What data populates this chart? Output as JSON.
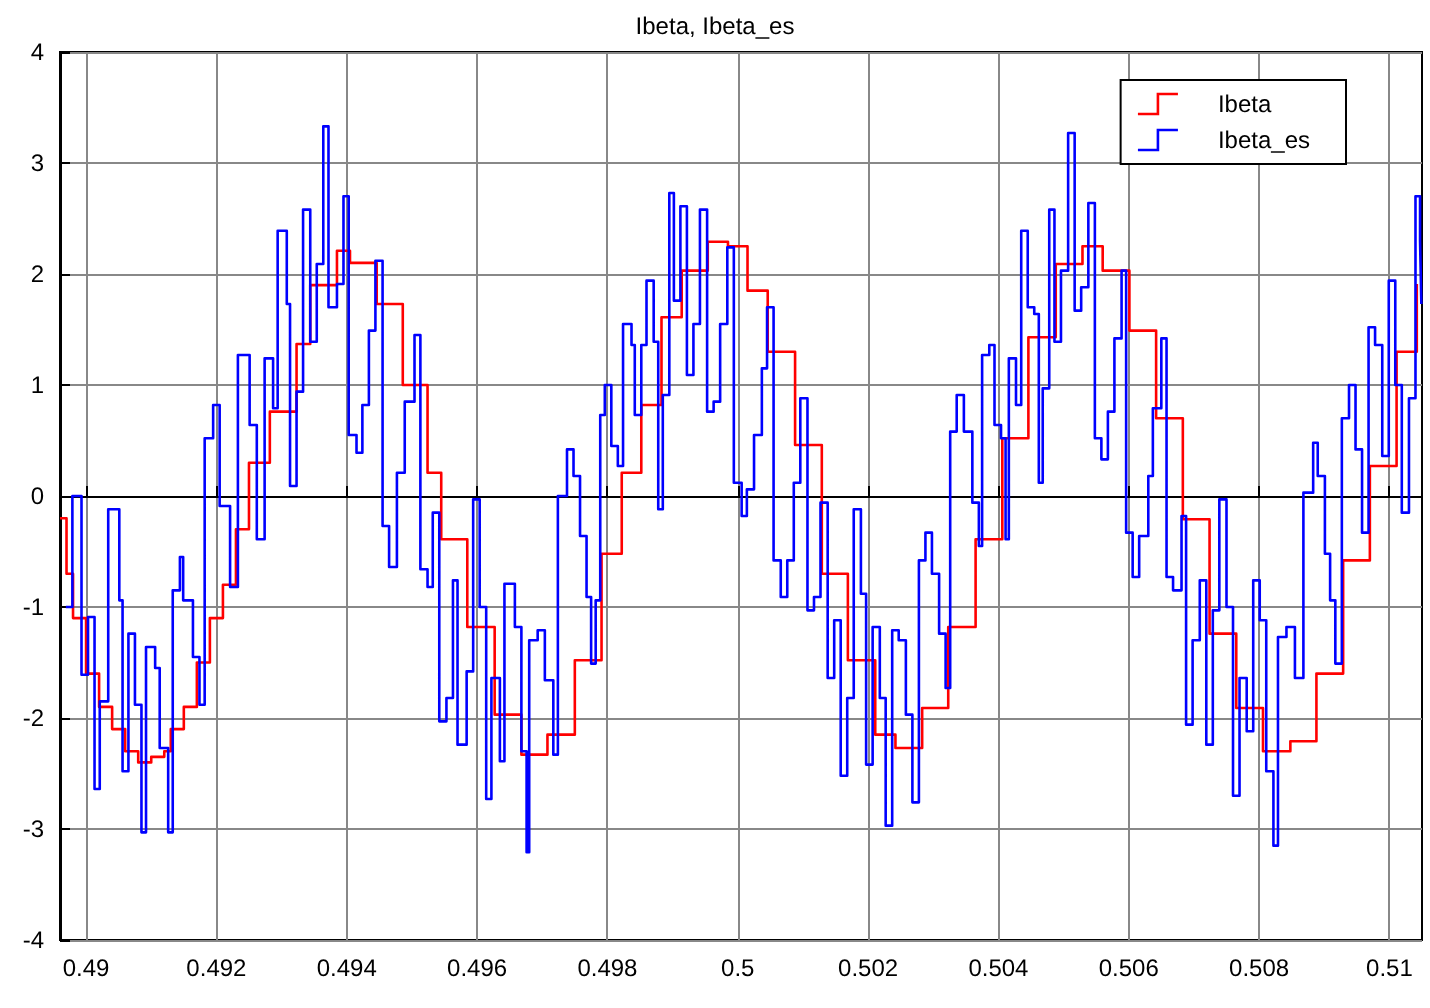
{
  "chart_data": {
    "type": "step",
    "title": "Ibeta, Ibeta_es",
    "legend": "top right",
    "grid": true,
    "marker": "none",
    "line_style": "solid",
    "xlim": [
      0.4896,
      0.5105
    ],
    "ylim": [
      -4,
      4
    ],
    "xticks": [
      0.49,
      0.492,
      0.494,
      0.496,
      0.498,
      0.5,
      0.502,
      0.504,
      0.506,
      0.508,
      0.51
    ],
    "yticks": [
      -4,
      -3,
      -2,
      -1,
      0,
      1,
      2,
      3,
      4
    ],
    "series": [
      {
        "name": "Ibeta",
        "color": "#ff0000",
        "x": [
          0.4896,
          0.4897,
          0.4898,
          0.49,
          0.4902,
          0.4904,
          0.4906,
          0.4908,
          0.491,
          0.4912,
          0.4913,
          0.4915,
          0.4917,
          0.4919,
          0.4921,
          0.4923,
          0.4925,
          0.49282,
          0.49323,
          0.49344,
          0.49385,
          0.49405,
          0.49446,
          0.49486,
          0.49524,
          0.49545,
          0.49585,
          0.49627,
          0.49668,
          0.49708,
          0.4975,
          0.49791,
          0.49822,
          0.49852,
          0.49883,
          0.49914,
          0.49954,
          0.49985,
          0.50015,
          0.50046,
          0.50088,
          0.50129,
          0.50169,
          0.50211,
          0.50242,
          0.50283,
          0.50323,
          0.50365,
          0.50406,
          0.50446,
          0.50488,
          0.50529,
          0.5056,
          0.50601,
          0.50642,
          0.50683,
          0.50724,
          0.50765,
          0.50806,
          0.50848,
          0.50888,
          0.50929,
          0.5097,
          0.51011,
          0.51042
        ],
        "values": [
          -0.2,
          -0.7,
          -1.1,
          -1.6,
          -1.9,
          -2.1,
          -2.3,
          -2.4,
          -2.35,
          -2.3,
          -2.1,
          -1.9,
          -1.5,
          -1.1,
          -0.8,
          -0.3,
          0.3,
          0.76,
          1.37,
          1.9,
          2.21,
          2.1,
          1.73,
          1.0,
          0.21,
          -0.39,
          -1.18,
          -1.97,
          -2.33,
          -2.15,
          -1.48,
          -0.52,
          0.21,
          0.82,
          1.61,
          2.03,
          2.29,
          2.25,
          1.85,
          1.3,
          0.46,
          -0.7,
          -1.48,
          -2.15,
          -2.27,
          -1.91,
          -1.18,
          -0.39,
          0.52,
          1.43,
          2.09,
          2.25,
          2.03,
          1.49,
          0.7,
          -0.21,
          -1.24,
          -1.91,
          -2.3,
          -2.21,
          -1.6,
          -0.58,
          0.27,
          1.3,
          1.91
        ]
      },
      {
        "name": "Ibeta_es",
        "color": "#0000ff",
        "x": [
          0.48969,
          0.48979,
          0.48993,
          0.49003,
          0.49013,
          0.49021,
          0.49034,
          0.49051,
          0.49056,
          0.49065,
          0.49075,
          0.49085,
          0.49092,
          0.49106,
          0.49113,
          0.49126,
          0.49133,
          0.49144,
          0.49149,
          0.49164,
          0.49174,
          0.49182,
          0.49195,
          0.49205,
          0.49221,
          0.49233,
          0.49251,
          0.49262,
          0.49274,
          0.49287,
          0.49294,
          0.49308,
          0.49313,
          0.49323,
          0.49333,
          0.49344,
          0.49354,
          0.49364,
          0.49372,
          0.49385,
          0.49395,
          0.49403,
          0.49415,
          0.49424,
          0.49434,
          0.49444,
          0.49455,
          0.49465,
          0.49477,
          0.49489,
          0.49504,
          0.49513,
          0.49524,
          0.49532,
          0.49542,
          0.49553,
          0.49563,
          0.4957,
          0.49584,
          0.49594,
          0.49604,
          0.49614,
          0.49622,
          0.49635,
          0.49642,
          0.49658,
          0.49668,
          0.49676,
          0.4968,
          0.49693,
          0.49704,
          0.49717,
          0.49724,
          0.49738,
          0.49748,
          0.49758,
          0.49768,
          0.49775,
          0.49782,
          0.49789,
          0.49796,
          0.49806,
          0.49816,
          0.49824,
          0.49837,
          0.49842,
          0.49852,
          0.4986,
          0.49871,
          0.49878,
          0.49885,
          0.49895,
          0.49902,
          0.49912,
          0.49922,
          0.49932,
          0.49942,
          0.49953,
          0.49963,
          0.49973,
          0.49984,
          0.49994,
          0.50006,
          0.50014,
          0.50025,
          0.50037,
          0.50045,
          0.50055,
          0.50066,
          0.50076,
          0.50086,
          0.50096,
          0.50107,
          0.50117,
          0.50127,
          0.50138,
          0.50148,
          0.50158,
          0.50168,
          0.50178,
          0.50189,
          0.50197,
          0.50207,
          0.50218,
          0.50227,
          0.50237,
          0.50247,
          0.50258,
          0.50268,
          0.50278,
          0.50288,
          0.50298,
          0.50309,
          0.50319,
          0.50326,
          0.50336,
          0.50347,
          0.5036,
          0.5037,
          0.50375,
          0.50386,
          0.50394,
          0.50404,
          0.50411,
          0.50416,
          0.50427,
          0.50435,
          0.50445,
          0.50455,
          0.50462,
          0.50468,
          0.50478,
          0.50486,
          0.50496,
          0.50507,
          0.50517,
          0.50527,
          0.50538,
          0.50548,
          0.50558,
          0.50568,
          0.50578,
          0.50589,
          0.50596,
          0.50606,
          0.50616,
          0.5063,
          0.50637,
          0.5065,
          0.50658,
          0.50668,
          0.50681,
          0.50688,
          0.50698,
          0.50709,
          0.50719,
          0.50729,
          0.50739,
          0.5075,
          0.5076,
          0.5077,
          0.50781,
          0.50791,
          0.50801,
          0.50811,
          0.50822,
          0.50829,
          0.50842,
          0.50855,
          0.50868,
          0.50883,
          0.5089,
          0.50901,
          0.50909,
          0.50917,
          0.50927,
          0.50938,
          0.50948,
          0.50958,
          0.50968,
          0.50978,
          0.50989,
          0.50999,
          0.51009,
          0.51019,
          0.5103,
          0.5104,
          0.51047,
          0.51049
        ],
        "values": [
          -1.0,
          0,
          -1.61,
          -1.09,
          -2.64,
          -1.85,
          -0.12,
          -0.94,
          -2.48,
          -1.24,
          -1.88,
          -3.03,
          -1.36,
          -1.55,
          -2.27,
          -3.03,
          -0.85,
          -0.55,
          -0.94,
          -1.45,
          -1.88,
          0.52,
          0.82,
          -0.09,
          -0.82,
          1.27,
          0.64,
          -0.39,
          1.24,
          0.79,
          2.39,
          1.73,
          0.09,
          0.94,
          2.58,
          1.39,
          2.09,
          3.33,
          1.7,
          1.91,
          2.7,
          0.55,
          0.39,
          0.82,
          1.49,
          2.12,
          -0.27,
          -0.64,
          0.21,
          0.85,
          1.45,
          -0.66,
          -0.82,
          -0.15,
          -2.03,
          -1.82,
          -0.76,
          -2.24,
          -1.58,
          -0.03,
          -1.0,
          -2.73,
          -1.64,
          -2.39,
          -0.79,
          -1.18,
          -2.3,
          -3.21,
          -1.3,
          -1.21,
          -1.66,
          -2.33,
          0,
          0.42,
          0.18,
          -0.36,
          -0.91,
          -1.51,
          -0.94,
          0.73,
          1.0,
          0.45,
          0.27,
          1.55,
          1.36,
          0.73,
          1.36,
          1.94,
          1.39,
          -0.12,
          0.91,
          2.73,
          1.76,
          2.61,
          1.09,
          1.55,
          2.58,
          0.76,
          0.85,
          1.55,
          2.24,
          0.12,
          -0.18,
          0.06,
          0.55,
          1.15,
          1.7,
          -0.58,
          -0.91,
          -0.58,
          0.12,
          0.88,
          -1.03,
          -0.91,
          -0.06,
          -1.64,
          -1.12,
          -2.52,
          -1.82,
          -0.12,
          -0.88,
          -2.42,
          -1.18,
          -1.82,
          -2.97,
          -1.21,
          -1.3,
          -1.97,
          -2.76,
          -0.58,
          -0.33,
          -0.7,
          -1.24,
          -1.73,
          0.58,
          0.91,
          0.58,
          -0.06,
          -0.45,
          1.27,
          1.36,
          0.64,
          0.52,
          -0.39,
          1.24,
          0.82,
          2.39,
          1.7,
          1.64,
          0.12,
          0.97,
          2.58,
          1.39,
          2.03,
          3.27,
          1.67,
          1.88,
          2.64,
          0.52,
          0.33,
          0.76,
          1.42,
          2.03,
          -0.33,
          -0.73,
          -0.36,
          0.18,
          0.79,
          1.42,
          -0.73,
          -0.85,
          -0.18,
          -2.06,
          -1.3,
          -0.76,
          -2.24,
          -1.03,
          -0.03,
          -1.0,
          -2.7,
          -1.64,
          -2.12,
          -0.76,
          -1.12,
          -2.48,
          -3.15,
          -1.27,
          -1.18,
          -1.64,
          0.03,
          0.48,
          0.18,
          -0.52,
          -0.94,
          -1.51,
          0.7,
          1.0,
          0.42,
          -0.33,
          1.52,
          1.36,
          0.36,
          1.94,
          1.0,
          -0.15,
          0.88,
          2.7,
          2.3,
          1.73
        ]
      }
    ]
  }
}
